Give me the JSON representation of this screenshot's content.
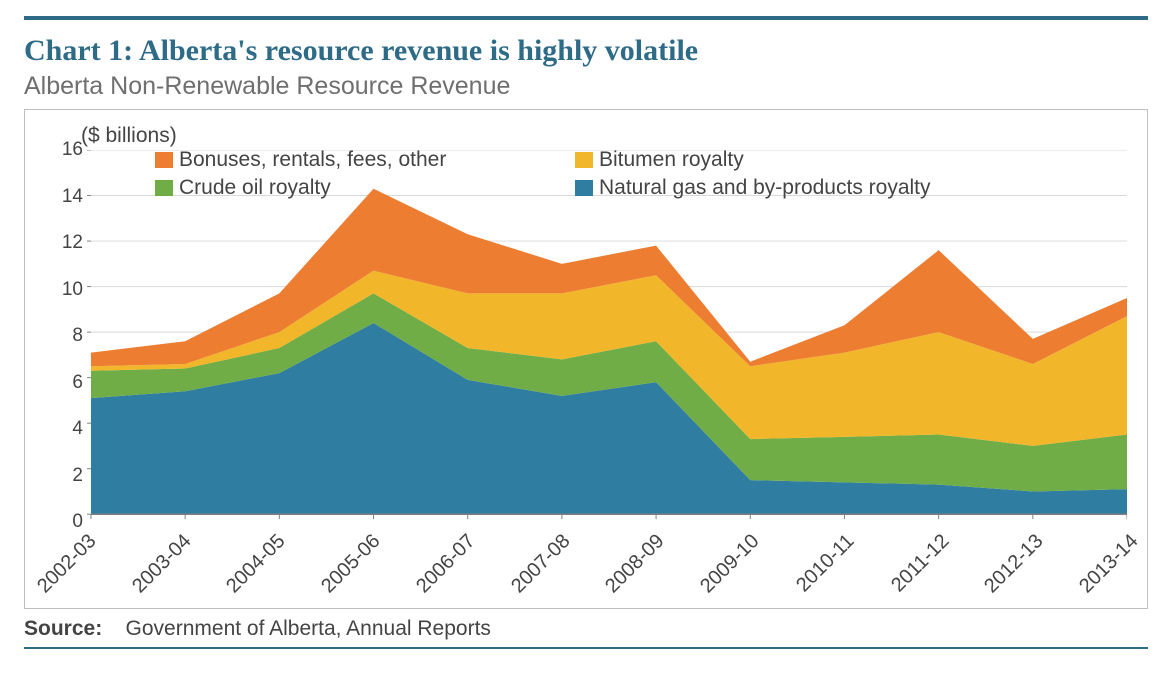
{
  "header": {
    "title": "Chart 1: Alberta's resource revenue is highly volatile",
    "subtitle": "Alberta Non-Renewable Resource Revenue"
  },
  "chart": {
    "type": "area-stacked",
    "unit_label": "($ billions)",
    "ylim": [
      0,
      16
    ],
    "ytick_step": 2,
    "background_color": "#ffffff",
    "grid_color": "#d9d9d9",
    "axis_color": "#7f7f7f",
    "text_color": "#444444",
    "label_fontsize": 20,
    "categories": [
      "2002-03",
      "2003-04",
      "2004-05",
      "2005-06",
      "2006-07",
      "2007-08",
      "2008-09",
      "2009-10",
      "2010-11",
      "2011-12",
      "2012-13",
      "2013-14"
    ],
    "series": [
      {
        "key": "natgas",
        "label": "Natural gas and by-products royalty",
        "color": "#2f7ea1",
        "values": [
          5.1,
          5.4,
          6.2,
          8.4,
          5.9,
          5.2,
          5.8,
          1.5,
          1.4,
          1.3,
          1.0,
          1.1
        ]
      },
      {
        "key": "crude",
        "label": "Crude oil royalty",
        "color": "#70ad47",
        "values": [
          1.2,
          1.0,
          1.1,
          1.3,
          1.4,
          1.6,
          1.8,
          1.8,
          2.0,
          2.2,
          2.0,
          2.4
        ]
      },
      {
        "key": "bitumen",
        "label": "Bitumen royalty",
        "color": "#f2b62b",
        "values": [
          0.2,
          0.2,
          0.7,
          1.0,
          2.4,
          2.9,
          2.9,
          3.2,
          3.7,
          4.5,
          3.6,
          5.2
        ]
      },
      {
        "key": "bonuses",
        "label": "Bonuses, rentals, fees, other",
        "color": "#ed7d31",
        "values": [
          0.6,
          1.0,
          1.7,
          3.6,
          2.6,
          1.3,
          1.3,
          0.2,
          1.2,
          3.6,
          1.1,
          0.8
        ]
      }
    ],
    "legend_order": [
      "bonuses",
      "bitumen",
      "crude",
      "natgas"
    ],
    "legend_columns": 2
  },
  "source": {
    "label": "Source:",
    "text": "Government of Alberta, Annual Reports"
  },
  "colors": {
    "rule": "#2d6b87",
    "title": "#2d6b87",
    "subtitle": "#6f6f6f",
    "border": "#bfbfbf"
  }
}
